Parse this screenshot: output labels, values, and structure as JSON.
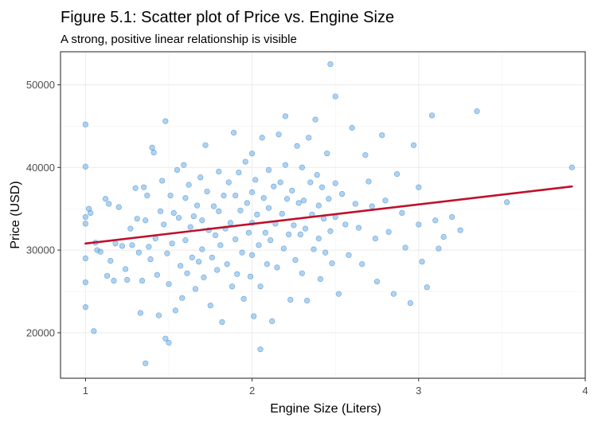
{
  "chart_data": {
    "type": "scatter",
    "title": "Figure 5.1: Scatter plot of Price vs. Engine Size",
    "subtitle": "A strong, positive linear relationship is visible",
    "xlabel": "Engine Size (Liters)",
    "ylabel": "Price (USD)",
    "xlim": [
      0.85,
      4.0
    ],
    "ylim": [
      14500,
      54000
    ],
    "x_ticks": [
      1,
      2,
      3,
      4
    ],
    "y_ticks": [
      20000,
      30000,
      40000,
      50000
    ],
    "x_tick_labels": [
      "1",
      "2",
      "3",
      "4"
    ],
    "y_tick_labels": [
      "20000",
      "30000",
      "40000",
      "50000"
    ],
    "grid": true,
    "legend": "none",
    "colors": {
      "points": "#6baee8",
      "point_outline": "#3f86c9",
      "trend_line": "#c0102b"
    },
    "trend_line": {
      "x": [
        1.0,
        3.92
      ],
      "y": [
        30800,
        37700
      ]
    },
    "series": [
      {
        "points": [
          [
            1.0,
            45200
          ],
          [
            1.0,
            40100
          ],
          [
            1.0,
            34000
          ],
          [
            1.0,
            33200
          ],
          [
            1.0,
            29000
          ],
          [
            1.0,
            26100
          ],
          [
            1.0,
            23100
          ],
          [
            1.02,
            35000
          ],
          [
            1.03,
            34500
          ],
          [
            1.05,
            20200
          ],
          [
            1.06,
            30900
          ],
          [
            1.07,
            30000
          ],
          [
            1.09,
            29800
          ],
          [
            1.12,
            36200
          ],
          [
            1.13,
            26900
          ],
          [
            1.15,
            28700
          ],
          [
            1.17,
            26300
          ],
          [
            1.18,
            30800
          ],
          [
            1.2,
            35200
          ],
          [
            1.22,
            30500
          ],
          [
            1.24,
            27700
          ],
          [
            1.25,
            26400
          ],
          [
            1.27,
            32600
          ],
          [
            1.28,
            30600
          ],
          [
            1.3,
            37500
          ],
          [
            1.31,
            33800
          ],
          [
            1.32,
            29700
          ],
          [
            1.33,
            22400
          ],
          [
            1.34,
            26300
          ],
          [
            1.35,
            37600
          ],
          [
            1.36,
            33600
          ],
          [
            1.37,
            36600
          ],
          [
            1.38,
            30400
          ],
          [
            1.39,
            28900
          ],
          [
            1.4,
            42400
          ],
          [
            1.41,
            41800
          ],
          [
            1.42,
            31400
          ],
          [
            1.43,
            27000
          ],
          [
            1.44,
            22100
          ],
          [
            1.45,
            34700
          ],
          [
            1.46,
            38400
          ],
          [
            1.47,
            33100
          ],
          [
            1.48,
            45600
          ],
          [
            1.49,
            29600
          ],
          [
            1.5,
            25900
          ],
          [
            1.5,
            18800
          ],
          [
            1.51,
            36600
          ],
          [
            1.52,
            30800
          ],
          [
            1.53,
            34500
          ],
          [
            1.54,
            22700
          ],
          [
            1.55,
            39700
          ],
          [
            1.56,
            33900
          ],
          [
            1.57,
            28100
          ],
          [
            1.58,
            24200
          ],
          [
            1.59,
            40300
          ],
          [
            1.6,
            36300
          ],
          [
            1.6,
            31200
          ],
          [
            1.61,
            27200
          ],
          [
            1.62,
            37900
          ],
          [
            1.63,
            32800
          ],
          [
            1.64,
            29100
          ],
          [
            1.65,
            34100
          ],
          [
            1.66,
            25300
          ],
          [
            1.67,
            35400
          ],
          [
            1.68,
            28600
          ],
          [
            1.69,
            38800
          ],
          [
            1.7,
            33600
          ],
          [
            1.7,
            30100
          ],
          [
            1.71,
            26700
          ],
          [
            1.72,
            42700
          ],
          [
            1.73,
            37100
          ],
          [
            1.74,
            32400
          ],
          [
            1.75,
            23300
          ],
          [
            1.76,
            29100
          ],
          [
            1.77,
            35300
          ],
          [
            1.78,
            31800
          ],
          [
            1.79,
            27600
          ],
          [
            1.8,
            39500
          ],
          [
            1.8,
            34700
          ],
          [
            1.81,
            30600
          ],
          [
            1.82,
            21300
          ],
          [
            1.83,
            36600
          ],
          [
            1.84,
            32600
          ],
          [
            1.85,
            28300
          ],
          [
            1.86,
            38200
          ],
          [
            1.87,
            33300
          ],
          [
            1.88,
            25600
          ],
          [
            1.89,
            44200
          ],
          [
            1.9,
            36600
          ],
          [
            1.9,
            31300
          ],
          [
            1.91,
            27100
          ],
          [
            1.92,
            39400
          ],
          [
            1.93,
            34800
          ],
          [
            1.94,
            29700
          ],
          [
            1.95,
            24100
          ],
          [
            1.96,
            40700
          ],
          [
            1.97,
            35700
          ],
          [
            1.98,
            32100
          ],
          [
            1.99,
            26800
          ],
          [
            2.0,
            41700
          ],
          [
            2.0,
            37000
          ],
          [
            2.0,
            33300
          ],
          [
            2.0,
            29400
          ],
          [
            2.01,
            22000
          ],
          [
            2.02,
            38500
          ],
          [
            2.03,
            34300
          ],
          [
            2.04,
            30600
          ],
          [
            2.05,
            25600
          ],
          [
            2.06,
            43600
          ],
          [
            2.07,
            36300
          ],
          [
            2.08,
            32100
          ],
          [
            2.09,
            28300
          ],
          [
            2.1,
            39700
          ],
          [
            2.1,
            35100
          ],
          [
            2.11,
            31200
          ],
          [
            2.12,
            21400
          ],
          [
            2.13,
            37700
          ],
          [
            2.14,
            33200
          ],
          [
            2.15,
            27900
          ],
          [
            2.16,
            44000
          ],
          [
            2.17,
            38200
          ],
          [
            2.18,
            34400
          ],
          [
            2.19,
            30200
          ],
          [
            2.2,
            46200
          ],
          [
            2.2,
            40300
          ],
          [
            2.21,
            36200
          ],
          [
            2.22,
            31900
          ],
          [
            2.23,
            24000
          ],
          [
            2.24,
            37200
          ],
          [
            2.25,
            33000
          ],
          [
            2.26,
            28800
          ],
          [
            2.27,
            42600
          ],
          [
            2.28,
            35700
          ],
          [
            2.29,
            31900
          ],
          [
            2.3,
            27200
          ],
          [
            2.3,
            40000
          ],
          [
            2.31,
            36000
          ],
          [
            2.32,
            32600
          ],
          [
            2.33,
            23900
          ],
          [
            2.34,
            43600
          ],
          [
            2.35,
            38200
          ],
          [
            2.36,
            34300
          ],
          [
            2.37,
            30100
          ],
          [
            2.38,
            45800
          ],
          [
            2.39,
            39100
          ],
          [
            2.4,
            35400
          ],
          [
            2.4,
            31400
          ],
          [
            2.41,
            26500
          ],
          [
            2.42,
            37600
          ],
          [
            2.43,
            33800
          ],
          [
            2.44,
            29700
          ],
          [
            2.45,
            41700
          ],
          [
            2.46,
            36200
          ],
          [
            2.47,
            32300
          ],
          [
            2.48,
            28400
          ],
          [
            2.5,
            48600
          ],
          [
            2.5,
            38100
          ],
          [
            2.5,
            34000
          ],
          [
            2.52,
            24700
          ],
          [
            2.54,
            36800
          ],
          [
            2.56,
            33100
          ],
          [
            2.58,
            29400
          ],
          [
            2.6,
            44800
          ],
          [
            2.62,
            35600
          ],
          [
            2.64,
            32700
          ],
          [
            2.66,
            28300
          ],
          [
            2.68,
            41500
          ],
          [
            2.7,
            38300
          ],
          [
            2.72,
            35300
          ],
          [
            2.74,
            31400
          ],
          [
            2.75,
            26200
          ],
          [
            2.78,
            43900
          ],
          [
            2.8,
            36000
          ],
          [
            2.82,
            32200
          ],
          [
            2.85,
            24700
          ],
          [
            2.87,
            39200
          ],
          [
            2.9,
            34500
          ],
          [
            2.92,
            30300
          ],
          [
            2.95,
            23600
          ],
          [
            2.97,
            42700
          ],
          [
            3.0,
            37600
          ],
          [
            3.0,
            33100
          ],
          [
            3.02,
            28600
          ],
          [
            3.05,
            25500
          ],
          [
            3.08,
            46300
          ],
          [
            3.1,
            33600
          ],
          [
            3.12,
            30200
          ],
          [
            3.15,
            31600
          ],
          [
            3.2,
            34000
          ],
          [
            3.25,
            32400
          ],
          [
            3.35,
            46800
          ],
          [
            3.53,
            35800
          ],
          [
            3.92,
            40000
          ],
          [
            1.36,
            16300
          ],
          [
            2.05,
            18000
          ],
          [
            1.48,
            19300
          ],
          [
            2.47,
            52500
          ],
          [
            1.14,
            35600
          ]
        ]
      }
    ]
  }
}
